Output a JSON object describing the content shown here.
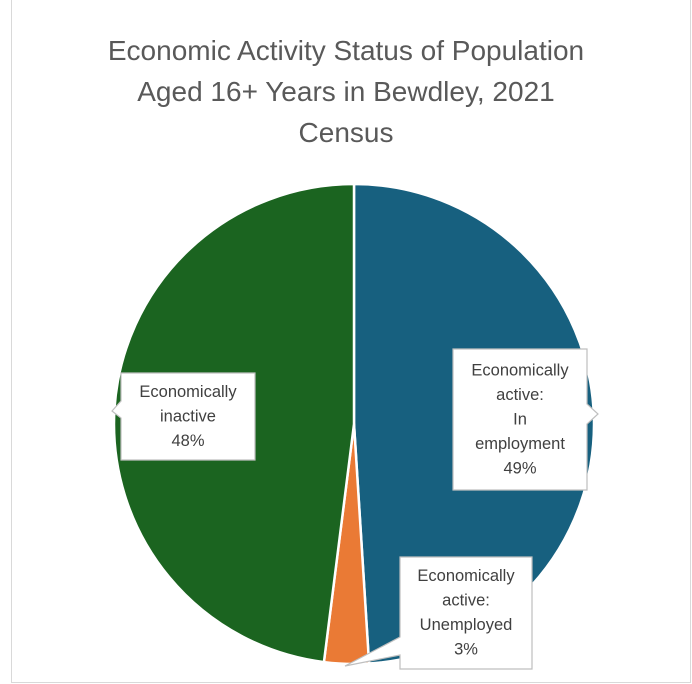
{
  "chart_data": {
    "type": "pie",
    "title_lines": [
      "Economic Activity Status of Population",
      "Aged 16+ Years in Bewdley, 2021",
      "Census"
    ],
    "slices": [
      {
        "category_lines": [
          "Economically",
          "active:",
          "In",
          "employment"
        ],
        "value": 49,
        "value_label": "49%",
        "color": "#17607f"
      },
      {
        "category_lines": [
          "Economically",
          "active:",
          "Unemployed"
        ],
        "value": 3,
        "value_label": "3%",
        "color": "#ea7a35"
      },
      {
        "category_lines": [
          "Economically",
          "inactive"
        ],
        "value": 48,
        "value_label": "48%",
        "color": "#1b6420"
      }
    ],
    "start_angle_deg": 0,
    "direction": "clockwise",
    "legend": "none",
    "slice_border_color": "#ffffff"
  }
}
